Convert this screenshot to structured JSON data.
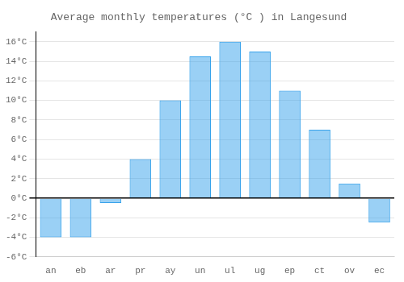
{
  "chart_data": {
    "type": "bar",
    "title": "Average monthly temperatures (°C ) in Langesund",
    "categories": [
      "an",
      "eb",
      "ar",
      "pr",
      "ay",
      "un",
      "ul",
      "ug",
      "ep",
      "ct",
      "ov",
      "ec"
    ],
    "values": [
      -4.0,
      -4.0,
      -0.5,
      4.0,
      10.0,
      14.5,
      16.0,
      15.0,
      11.0,
      7.0,
      1.5,
      -2.5
    ],
    "ylim": [
      -6,
      17
    ],
    "yticks": [
      {
        "value": -6,
        "label": "-6°C"
      },
      {
        "value": -4,
        "label": "-4°C"
      },
      {
        "value": -2,
        "label": "-2°C"
      },
      {
        "value": 0,
        "label": "0°C"
      },
      {
        "value": 2,
        "label": "2°C"
      },
      {
        "value": 4,
        "label": "4°C"
      },
      {
        "value": 6,
        "label": "6°C"
      },
      {
        "value": 8,
        "label": "8°C"
      },
      {
        "value": 10,
        "label": "10°C"
      },
      {
        "value": 12,
        "label": "12°C"
      },
      {
        "value": 14,
        "label": "14°C"
      },
      {
        "value": 16,
        "label": "16°C"
      }
    ],
    "grid": true
  }
}
